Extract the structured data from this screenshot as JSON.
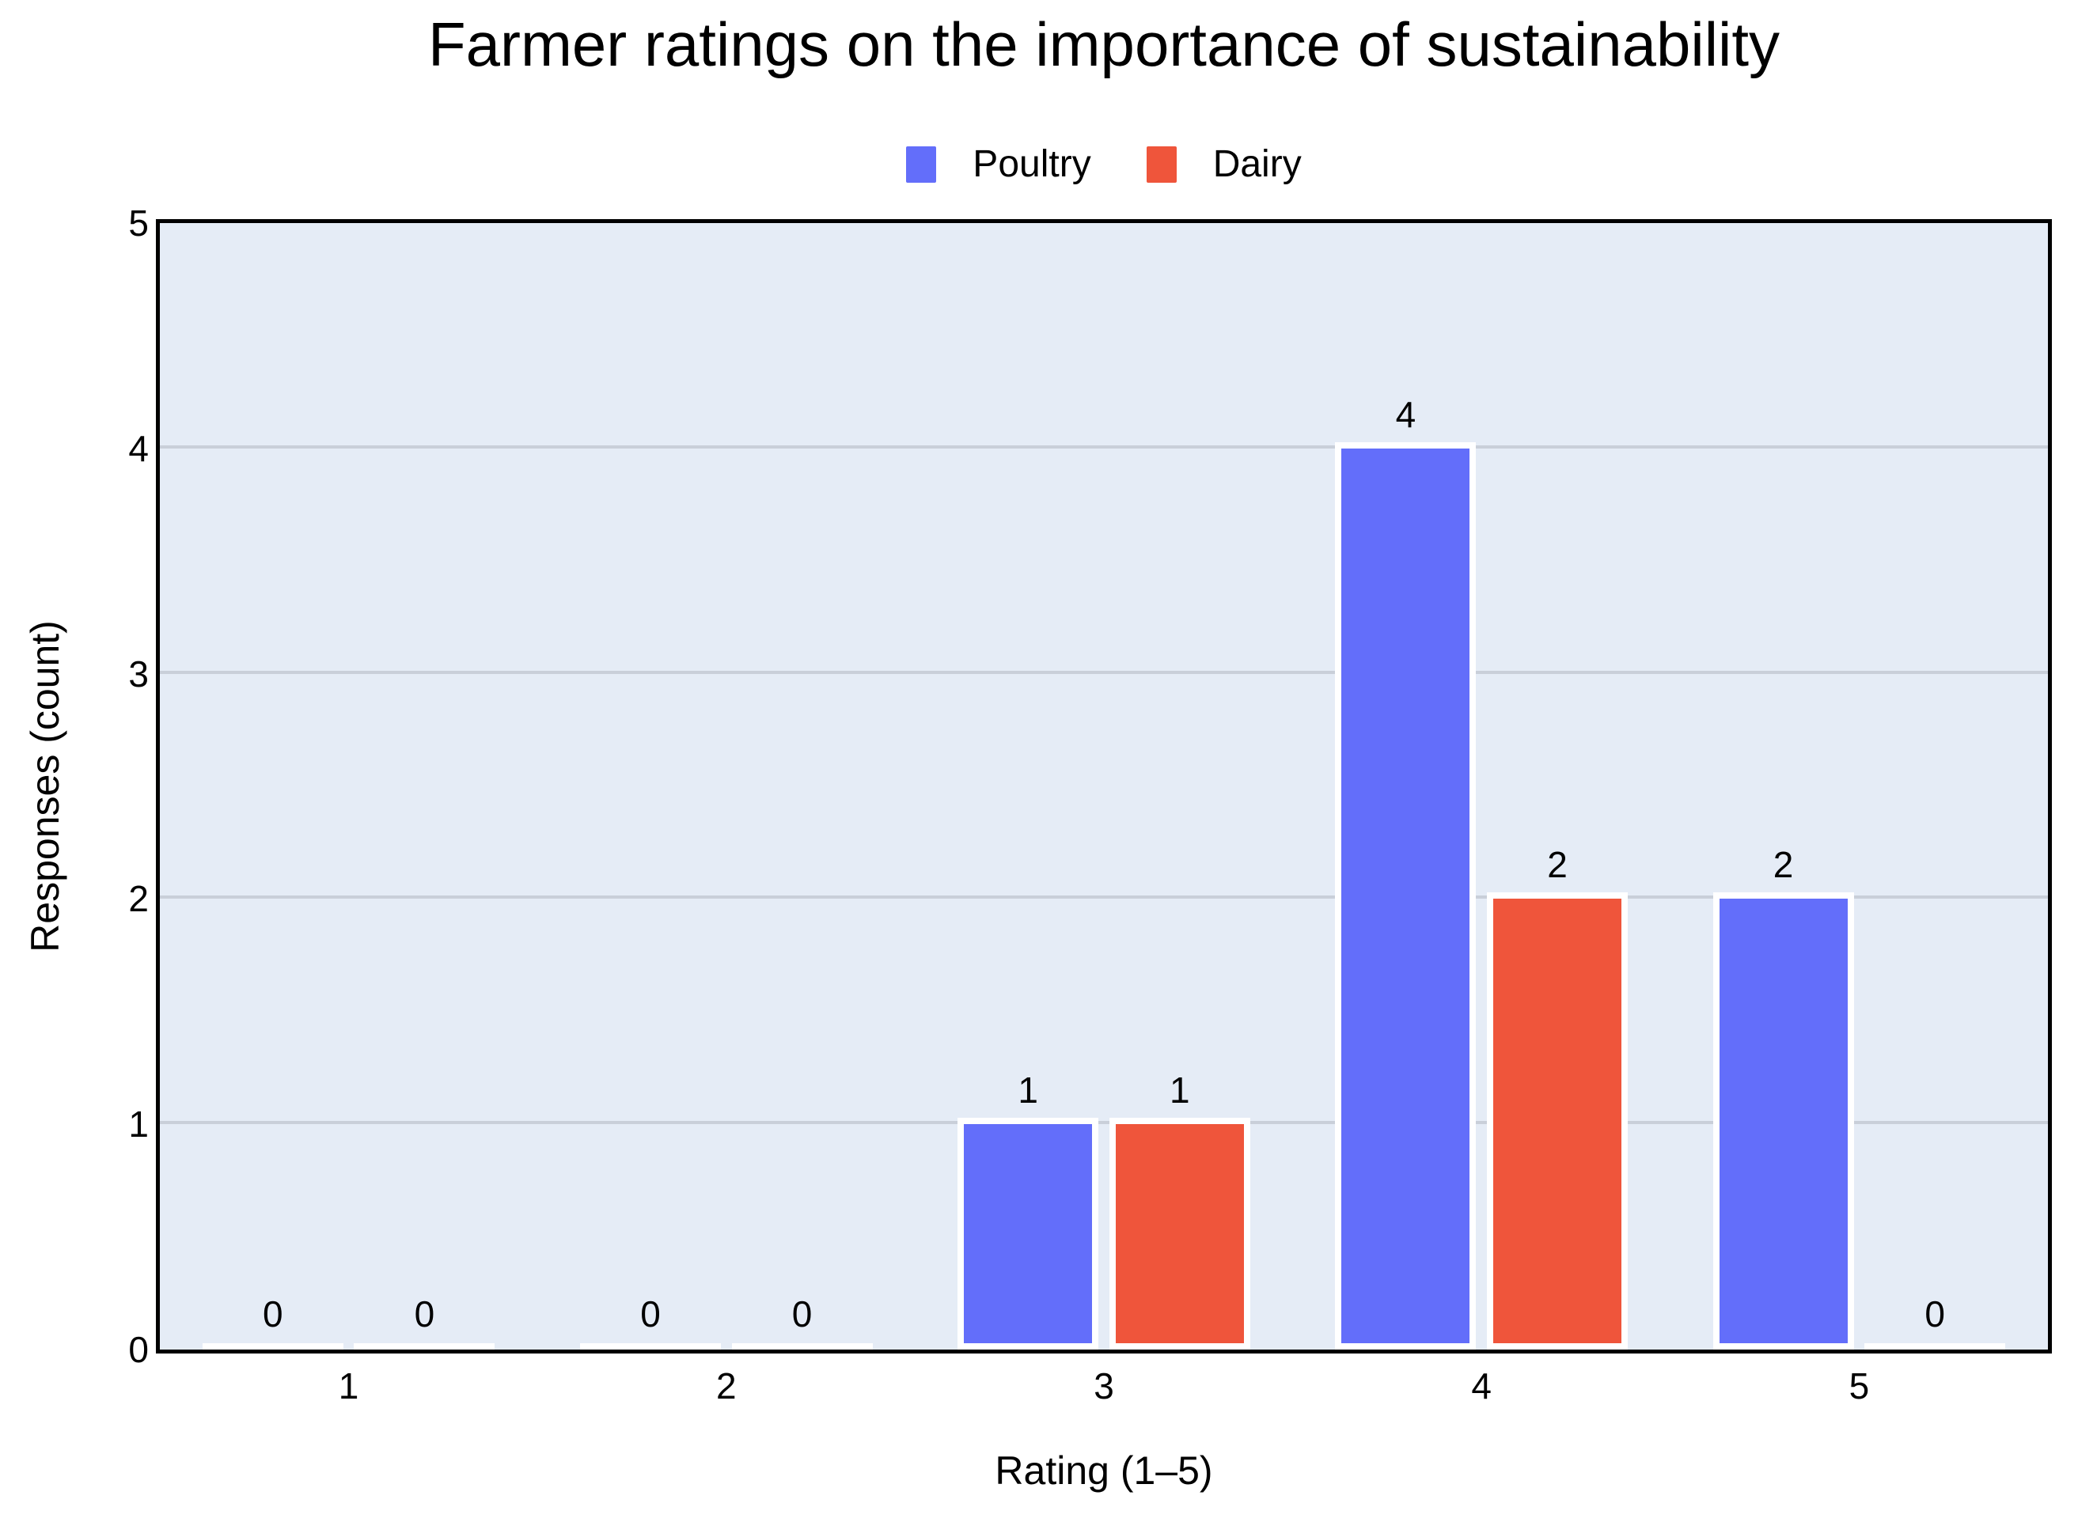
{
  "title": "Farmer ratings on the importance of sustainability",
  "legend": {
    "position": "top-center",
    "items": [
      {
        "label": "Poultry",
        "color": "#636EFA"
      },
      {
        "label": "Dairy",
        "color": "#EF553B"
      }
    ]
  },
  "axes": {
    "x_title": "Rating (1–5)",
    "y_title": "Responses (count)",
    "x_tick_labels": [
      "1",
      "2",
      "3",
      "4",
      "5"
    ],
    "y_tick_labels": [
      "0",
      "1",
      "2",
      "3",
      "4",
      "5"
    ]
  },
  "chart_data": {
    "type": "bar",
    "title": "Farmer ratings on the importance of sustainability",
    "categories": [
      "1",
      "2",
      "3",
      "4",
      "5"
    ],
    "series": [
      {
        "name": "Poultry",
        "color": "#636EFA",
        "values": [
          0,
          0,
          1,
          4,
          2
        ]
      },
      {
        "name": "Dairy",
        "color": "#EF553B",
        "values": [
          0,
          0,
          1,
          2,
          0
        ]
      }
    ],
    "bar_value_labels": [
      {
        "series": "Poultry",
        "labels": [
          "0",
          "0",
          "1",
          "4",
          "2"
        ]
      },
      {
        "series": "Dairy",
        "labels": [
          "0",
          "0",
          "1",
          "2",
          "0"
        ]
      }
    ],
    "xlabel": "Rating (1–5)",
    "ylabel": "Responses (count)",
    "ylim": [
      0,
      5
    ],
    "y_ticks": [
      0,
      1,
      2,
      3,
      4,
      5
    ],
    "grid": "horizontal",
    "legend_position": "top-center",
    "colors": {
      "plot_background": "#E5ECF6",
      "figure_background": "#FFFFFF",
      "gridline": "#C9CFD9",
      "axis_border": "#000000",
      "bar_outline": "#FFFFFF",
      "text": "#000000"
    }
  }
}
